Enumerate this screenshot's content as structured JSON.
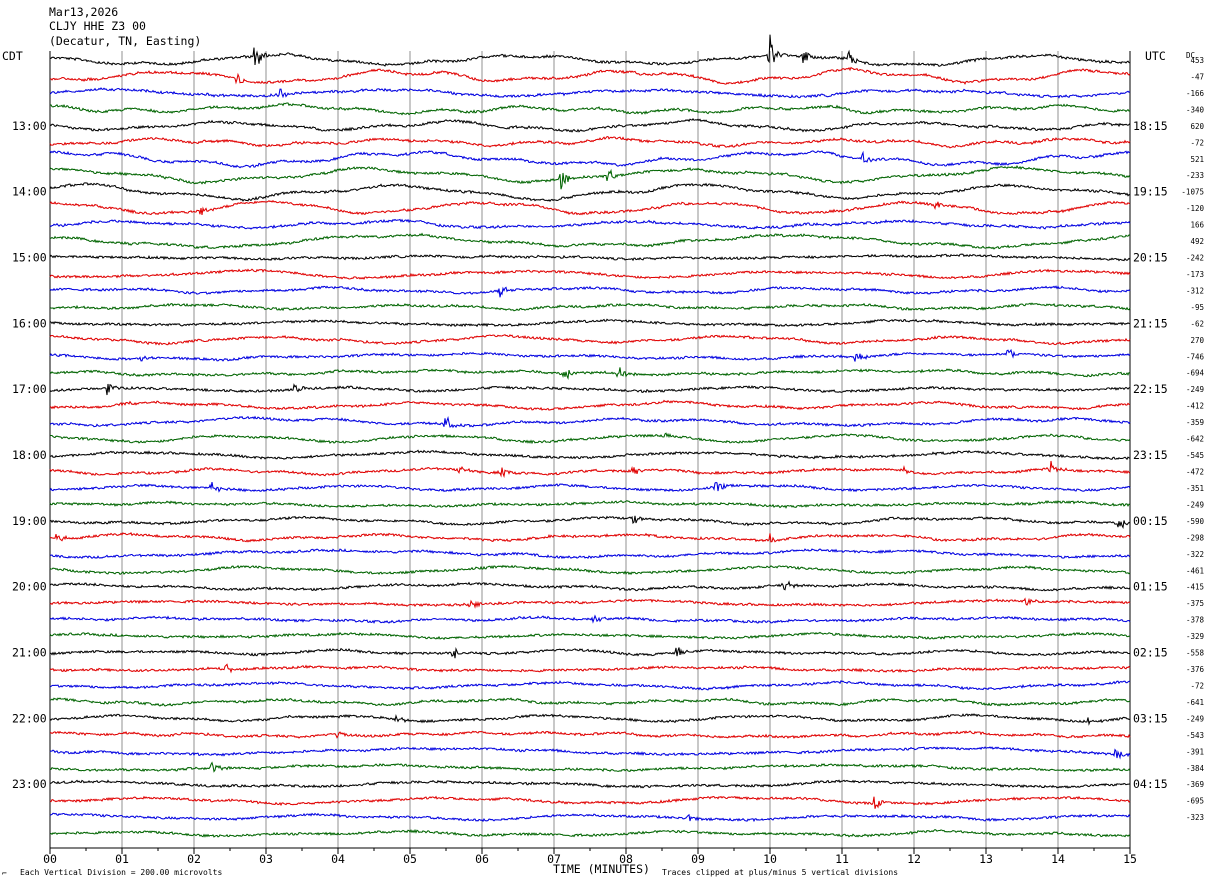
{
  "header": {
    "date": "Mar13,2026",
    "station": "CLJY HHE Z3 00",
    "location": "(Decatur, TN, Easting)"
  },
  "labels": {
    "left_timezone": "CDT",
    "right_timezone": "UTC",
    "dc_label": "DC",
    "xlabel": "TIME (MINUTES)",
    "scale_note": "Each Vertical Division =  200.00 microvolts",
    "clip_note": "Traces clipped at plus/minus 5 vertical divisions",
    "corner_mark": "⌐"
  },
  "chart_data": {
    "type": "line",
    "x_ticks": [
      "00",
      "01",
      "02",
      "03",
      "04",
      "05",
      "06",
      "07",
      "08",
      "09",
      "10",
      "11",
      "12",
      "13",
      "14",
      "15"
    ],
    "xlim": [
      0,
      15
    ],
    "trace_colors": [
      "#000000",
      "#e00000",
      "#0000e0",
      "#006400"
    ],
    "trace_count": 48,
    "left_time_labels": [
      {
        "label": "13:00",
        "trace": 4
      },
      {
        "label": "14:00",
        "trace": 8
      },
      {
        "label": "15:00",
        "trace": 12
      },
      {
        "label": "16:00",
        "trace": 16
      },
      {
        "label": "17:00",
        "trace": 20
      },
      {
        "label": "18:00",
        "trace": 24
      },
      {
        "label": "19:00",
        "trace": 28
      },
      {
        "label": "20:00",
        "trace": 32
      },
      {
        "label": "21:00",
        "trace": 36
      },
      {
        "label": "22:00",
        "trace": 40
      },
      {
        "label": "23:00",
        "trace": 44
      }
    ],
    "right_time_labels": [
      {
        "label": "18:15",
        "trace": 4
      },
      {
        "label": "19:15",
        "trace": 8
      },
      {
        "label": "20:15",
        "trace": 12
      },
      {
        "label": "21:15",
        "trace": 16
      },
      {
        "label": "22:15",
        "trace": 20
      },
      {
        "label": "23:15",
        "trace": 24
      },
      {
        "label": "00:15",
        "trace": 28
      },
      {
        "label": "01:15",
        "trace": 32
      },
      {
        "label": "02:15",
        "trace": 36
      },
      {
        "label": "03:15",
        "trace": 40
      },
      {
        "label": "04:15",
        "trace": 44
      }
    ],
    "dc_offsets": [
      "453",
      "-47",
      "-166",
      "-340",
      "620",
      "-72",
      "521",
      "-233",
      "-1075",
      "-120",
      "166",
      "492",
      "-242",
      "-173",
      "-312",
      "-95",
      "-62",
      "270",
      "-746",
      "-694",
      "-249",
      "-412",
      "-359",
      "-642",
      "-545",
      "-472",
      "-351",
      "-249",
      "-590",
      "-298",
      "-322",
      "-461",
      "-415",
      "-375",
      "-378",
      "-329",
      "-558",
      "-376",
      "-72",
      "-641",
      "-249",
      "-543",
      "-391",
      "-384",
      "-369",
      "-695",
      "-323"
    ],
    "events": [
      {
        "trace": 0,
        "minute": 2.85,
        "amp": 16
      },
      {
        "trace": 0,
        "minute": 10.0,
        "amp": 20
      },
      {
        "trace": 0,
        "minute": 10.45,
        "amp": 9
      },
      {
        "trace": 0,
        "minute": 11.1,
        "amp": 8
      },
      {
        "trace": 1,
        "minute": 2.6,
        "amp": 7
      },
      {
        "trace": 2,
        "minute": 3.2,
        "amp": 8
      },
      {
        "trace": 6,
        "minute": 11.3,
        "amp": 7
      },
      {
        "trace": 7,
        "minute": 7.1,
        "amp": 12
      },
      {
        "trace": 7,
        "minute": 7.75,
        "amp": 8
      },
      {
        "trace": 9,
        "minute": 2.1,
        "amp": 6
      },
      {
        "trace": 9,
        "minute": 12.3,
        "amp": 6
      },
      {
        "trace": 14,
        "minute": 6.25,
        "amp": 8
      },
      {
        "trace": 18,
        "minute": 1.25,
        "amp": 5
      },
      {
        "trace": 18,
        "minute": 11.2,
        "amp": 7
      },
      {
        "trace": 18,
        "minute": 13.3,
        "amp": 8
      },
      {
        "trace": 19,
        "minute": 7.15,
        "amp": 9
      },
      {
        "trace": 19,
        "minute": 7.9,
        "amp": 10
      },
      {
        "trace": 20,
        "minute": 0.8,
        "amp": 10
      },
      {
        "trace": 20,
        "minute": 3.4,
        "amp": 6
      },
      {
        "trace": 21,
        "minute": 1.0,
        "amp": 6
      },
      {
        "trace": 22,
        "minute": 5.5,
        "amp": 12
      },
      {
        "trace": 23,
        "minute": 8.55,
        "amp": 6
      },
      {
        "trace": 25,
        "minute": 5.7,
        "amp": 6
      },
      {
        "trace": 25,
        "minute": 6.25,
        "amp": 8
      },
      {
        "trace": 25,
        "minute": 8.1,
        "amp": 7
      },
      {
        "trace": 25,
        "minute": 11.85,
        "amp": 6
      },
      {
        "trace": 25,
        "minute": 13.9,
        "amp": 10
      },
      {
        "trace": 26,
        "minute": 2.25,
        "amp": 8
      },
      {
        "trace": 26,
        "minute": 9.25,
        "amp": 7
      },
      {
        "trace": 28,
        "minute": 8.1,
        "amp": 7
      },
      {
        "trace": 28,
        "minute": 14.85,
        "amp": 9
      },
      {
        "trace": 29,
        "minute": 0.1,
        "amp": 6
      },
      {
        "trace": 29,
        "minute": 10.0,
        "amp": 6
      },
      {
        "trace": 32,
        "minute": 10.2,
        "amp": 7
      },
      {
        "trace": 33,
        "minute": 5.85,
        "amp": 8
      },
      {
        "trace": 33,
        "minute": 13.55,
        "amp": 6
      },
      {
        "trace": 34,
        "minute": 7.55,
        "amp": 7
      },
      {
        "trace": 36,
        "minute": 5.6,
        "amp": 8
      },
      {
        "trace": 36,
        "minute": 8.7,
        "amp": 7
      },
      {
        "trace": 37,
        "minute": 2.45,
        "amp": 6
      },
      {
        "trace": 40,
        "minute": 4.8,
        "amp": 5
      },
      {
        "trace": 40,
        "minute": 14.4,
        "amp": 6
      },
      {
        "trace": 41,
        "minute": 4.0,
        "amp": 5
      },
      {
        "trace": 42,
        "minute": 14.8,
        "amp": 7
      },
      {
        "trace": 43,
        "minute": 2.25,
        "amp": 7
      },
      {
        "trace": 45,
        "minute": 11.45,
        "amp": 8
      },
      {
        "trace": 46,
        "minute": 8.85,
        "amp": 5
      }
    ]
  }
}
